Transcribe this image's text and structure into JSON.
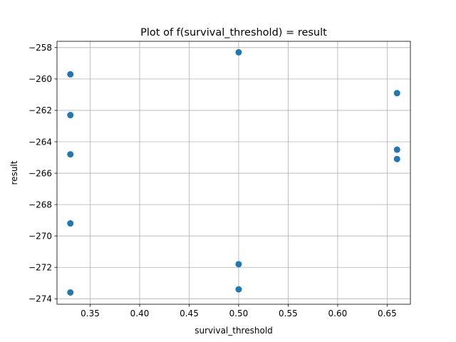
{
  "chart_data": {
    "type": "scatter",
    "title": "Plot of f(survival_threshold) = result",
    "xlabel": "survival_threshold",
    "ylabel": "result",
    "xlim": [
      0.3165,
      0.6735
    ],
    "ylim": [
      -274.35,
      -257.6
    ],
    "xticks": [
      0.35,
      0.4,
      0.45,
      0.5,
      0.55,
      0.6,
      0.65
    ],
    "xtick_labels": [
      "0.35",
      "0.40",
      "0.45",
      "0.50",
      "0.55",
      "0.60",
      "0.65"
    ],
    "yticks": [
      -258,
      -260,
      -262,
      -264,
      -266,
      -268,
      -270,
      -272,
      -274
    ],
    "ytick_labels": [
      "−258",
      "−260",
      "−262",
      "−264",
      "−266",
      "−268",
      "−270",
      "−272",
      "−274"
    ],
    "grid": true,
    "marker_color": "#1f77b4",
    "points": [
      {
        "x": 0.33,
        "y": -259.7
      },
      {
        "x": 0.33,
        "y": -262.3
      },
      {
        "x": 0.33,
        "y": -264.8
      },
      {
        "x": 0.33,
        "y": -269.2
      },
      {
        "x": 0.33,
        "y": -273.6
      },
      {
        "x": 0.5,
        "y": -258.3
      },
      {
        "x": 0.5,
        "y": -271.8
      },
      {
        "x": 0.5,
        "y": -273.4
      },
      {
        "x": 0.66,
        "y": -260.9
      },
      {
        "x": 0.66,
        "y": -264.5
      },
      {
        "x": 0.66,
        "y": -265.1
      }
    ]
  }
}
